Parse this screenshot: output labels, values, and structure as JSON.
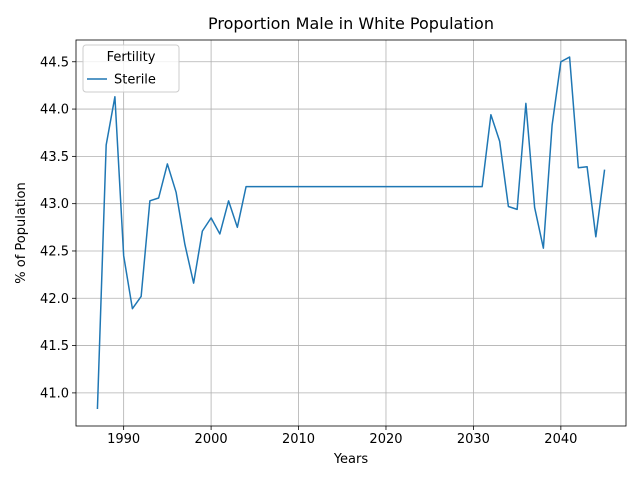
{
  "chart_data": {
    "type": "line",
    "title": "Proportion Male in White Population",
    "xlabel": "Years",
    "ylabel": "% of Population",
    "xlim": [
      1984.55,
      2047.45
    ],
    "ylim": [
      40.65,
      44.73
    ],
    "xticks": [
      1990,
      2000,
      2010,
      2020,
      2030,
      2040
    ],
    "xtick_labels": [
      "1990",
      "2000",
      "2010",
      "2020",
      "2030",
      "2040"
    ],
    "yticks": [
      41.0,
      41.5,
      42.0,
      42.5,
      43.0,
      43.5,
      44.0,
      44.5
    ],
    "ytick_labels": [
      "41.0",
      "41.5",
      "42.0",
      "42.5",
      "43.0",
      "43.5",
      "44.0",
      "44.5"
    ],
    "grid": true,
    "legend": {
      "title": "Fertility",
      "placement": "upper-left"
    },
    "series": [
      {
        "name": "Sterile",
        "color": "#1f77b4",
        "x": [
          1987,
          1988,
          1989,
          1990,
          1991,
          1992,
          1993,
          1994,
          1995,
          1996,
          1997,
          1998,
          1999,
          2000,
          2001,
          2002,
          2003,
          2004,
          2005,
          2006,
          2007,
          2008,
          2009,
          2010,
          2011,
          2012,
          2013,
          2014,
          2015,
          2016,
          2017,
          2018,
          2019,
          2020,
          2021,
          2022,
          2023,
          2024,
          2025,
          2026,
          2027,
          2028,
          2029,
          2030,
          2031,
          2032,
          2033,
          2034,
          2035,
          2036,
          2037,
          2038,
          2039,
          2040,
          2041,
          2042,
          2043,
          2044,
          2045
        ],
        "y": [
          40.83,
          43.62,
          44.13,
          42.45,
          41.89,
          42.02,
          43.03,
          43.06,
          43.42,
          43.12,
          42.57,
          42.16,
          42.71,
          42.85,
          42.68,
          43.03,
          42.75,
          43.18,
          43.18,
          43.18,
          43.18,
          43.18,
          43.18,
          43.18,
          43.18,
          43.18,
          43.18,
          43.18,
          43.18,
          43.18,
          43.18,
          43.18,
          43.18,
          43.18,
          43.18,
          43.18,
          43.18,
          43.18,
          43.18,
          43.18,
          43.18,
          43.18,
          43.18,
          43.18,
          43.18,
          43.94,
          43.66,
          42.97,
          42.94,
          44.06,
          42.96,
          42.53,
          43.83,
          44.5,
          44.55,
          43.38,
          43.39,
          42.65,
          43.36
        ]
      }
    ]
  }
}
